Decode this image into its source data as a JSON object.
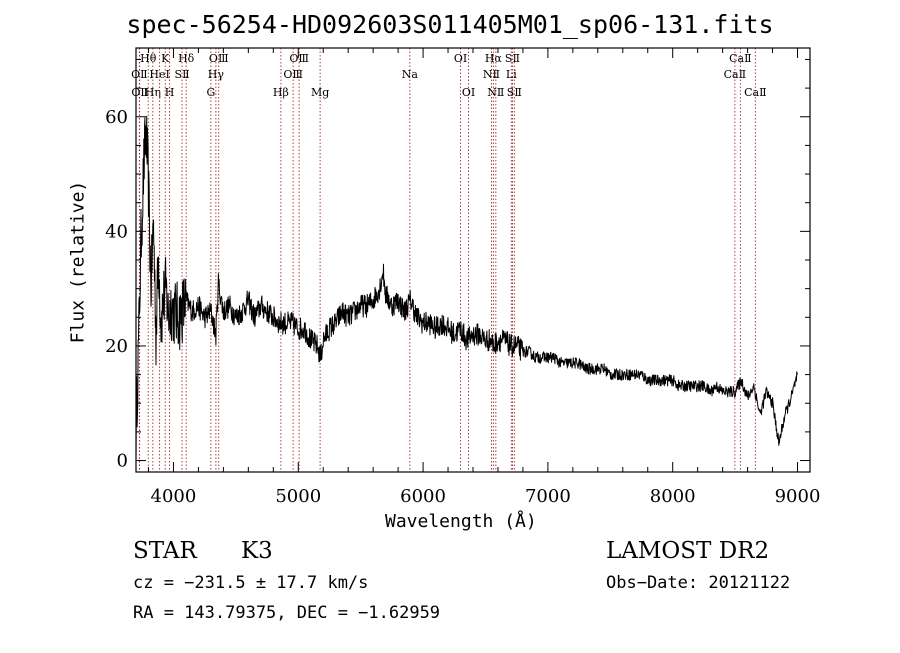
{
  "chart_data": {
    "type": "line",
    "title": "spec-56254-HD092603S011405M01_sp06-131.fits",
    "xlabel": "Wavelength (Å)",
    "ylabel": "Flux (relative)",
    "xlim": [
      3700,
      9100
    ],
    "ylim": [
      -2,
      72
    ],
    "x_ticks": [
      4000,
      5000,
      6000,
      7000,
      8000,
      9000
    ],
    "x_tick_labels": [
      "4000",
      "5000",
      "6000",
      "7000",
      "8000",
      "9000"
    ],
    "y_ticks": [
      0,
      20,
      40,
      60
    ],
    "y_tick_labels": [
      "0",
      "20",
      "40",
      "60"
    ],
    "grid": false,
    "line_color": "#000000",
    "marker_color": "#a52a2a",
    "series": [
      {
        "x": [
          3700,
          3720,
          3740,
          3760,
          3780,
          3800,
          3820,
          3840,
          3860,
          3880,
          3900,
          3920,
          3940,
          3960,
          3980,
          4000,
          4050,
          4100,
          4150,
          4200,
          4250,
          4300,
          4340,
          4360,
          4400,
          4450,
          4500,
          4550,
          4600,
          4650,
          4700,
          4750,
          4800,
          4850,
          4900,
          4950,
          5000,
          5050,
          5100,
          5150,
          5180,
          5200,
          5250,
          5300,
          5350,
          5400,
          5450,
          5500,
          5550,
          5600,
          5650,
          5680,
          5700,
          5750,
          5800,
          5850,
          5900,
          5950,
          6000,
          6050,
          6100,
          6150,
          6200,
          6250,
          6300,
          6350,
          6400,
          6450,
          6500,
          6550,
          6563,
          6600,
          6650,
          6700,
          6750,
          6800,
          6850,
          6900,
          6950,
          7000,
          7050,
          7100,
          7150,
          7200,
          7250,
          7300,
          7350,
          7400,
          7450,
          7500,
          7550,
          7600,
          7650,
          7700,
          7750,
          7800,
          7850,
          7900,
          7950,
          8000,
          8050,
          8100,
          8150,
          8200,
          8250,
          8300,
          8350,
          8400,
          8450,
          8500,
          8550,
          8600,
          8650,
          8700,
          8750,
          8800,
          8850,
          8900,
          8950,
          9000
        ],
        "y": [
          5,
          20,
          38,
          50,
          58,
          48,
          30,
          42,
          22,
          36,
          24,
          28,
          30,
          25,
          27,
          26,
          25,
          28,
          26,
          27,
          25,
          26,
          22,
          31,
          26,
          27,
          25,
          26,
          28,
          25,
          27,
          26,
          25,
          24,
          24,
          24,
          23,
          23,
          21,
          20,
          18,
          21,
          23,
          24,
          26,
          25,
          26,
          27,
          27,
          28,
          30,
          33,
          29,
          27,
          28,
          26,
          28,
          25,
          24,
          24,
          23,
          24,
          23,
          22,
          23,
          21,
          22,
          22,
          21,
          21,
          20,
          21,
          21,
          20,
          20,
          19,
          19,
          18,
          18,
          18,
          18,
          17,
          17,
          17,
          17,
          16,
          16,
          16,
          16,
          15,
          15,
          15,
          15,
          15,
          15,
          14,
          14,
          14,
          14,
          14,
          13,
          13,
          13,
          13,
          13,
          12,
          13,
          12,
          12,
          12,
          14,
          11,
          13,
          8,
          12,
          10,
          3,
          8,
          11,
          15
        ]
      }
    ],
    "line_markers": [
      {
        "label": "OⅡ",
        "x": 3727,
        "row": 2
      },
      {
        "label": "OⅡ",
        "x": 3729,
        "row": 3
      },
      {
        "label": "Hθ",
        "x": 3798,
        "row": 1
      },
      {
        "label": "Hη",
        "x": 3835,
        "row": 3
      },
      {
        "label": "HeⅠ",
        "x": 3889,
        "row": 2
      },
      {
        "label": "K",
        "x": 3934,
        "row": 1
      },
      {
        "label": "H",
        "x": 3969,
        "row": 3
      },
      {
        "label": "SⅡ",
        "x": 4069,
        "row": 2
      },
      {
        "label": "Hδ",
        "x": 4102,
        "row": 1
      },
      {
        "label": "G",
        "x": 4300,
        "row": 3
      },
      {
        "label": "Hγ",
        "x": 4340,
        "row": 2
      },
      {
        "label": "OⅢ",
        "x": 4363,
        "row": 1
      },
      {
        "label": "Hβ",
        "x": 4861,
        "row": 3
      },
      {
        "label": "OⅢ",
        "x": 4959,
        "row": 2
      },
      {
        "label": "OⅢ",
        "x": 5007,
        "row": 1
      },
      {
        "label": "Mg",
        "x": 5175,
        "row": 3
      },
      {
        "label": "Na",
        "x": 5894,
        "row": 2
      },
      {
        "label": "OⅠ",
        "x": 6300,
        "row": 1
      },
      {
        "label": "OⅠ",
        "x": 6364,
        "row": 3
      },
      {
        "label": "NⅡ",
        "x": 6548,
        "row": 2
      },
      {
        "label": "Hα",
        "x": 6563,
        "row": 1
      },
      {
        "label": "NⅡ",
        "x": 6583,
        "row": 3
      },
      {
        "label": "Li",
        "x": 6707,
        "row": 2
      },
      {
        "label": "SⅡ",
        "x": 6716,
        "row": 1
      },
      {
        "label": "SⅡ",
        "x": 6731,
        "row": 3
      },
      {
        "label": "CaⅡ",
        "x": 8498,
        "row": 2
      },
      {
        "label": "CaⅡ",
        "x": 8542,
        "row": 1
      },
      {
        "label": "CaⅡ",
        "x": 8662,
        "row": 3
      }
    ]
  },
  "info": {
    "object_class": "STAR",
    "subclass": "K3",
    "survey": "LAMOST DR2",
    "cz": "cz = −231.5 ± 17.7 km/s",
    "obs_date": "Obs−Date: 20121122",
    "coords": "RA = 143.79375, DEC =  −1.62959"
  }
}
